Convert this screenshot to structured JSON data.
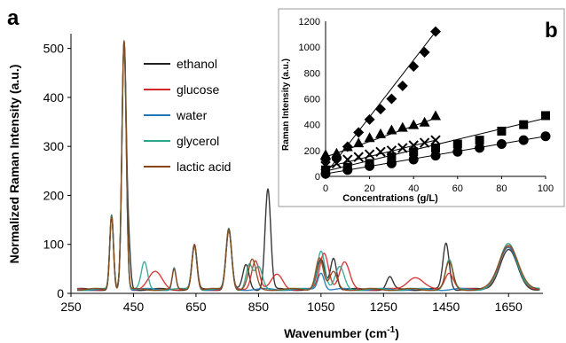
{
  "chart_data": [
    {
      "panel": "a",
      "type": "line",
      "xlabel_main": "Wavenumber (cm",
      "xlabel_sup": "-1",
      "xlabel_close": ")",
      "ylabel": "Normalized Raman Intensity (a.u.)",
      "xlim": [
        250,
        1760
      ],
      "ylim": [
        0,
        530
      ],
      "xticks": [
        250,
        450,
        650,
        850,
        1050,
        1250,
        1450,
        1650
      ],
      "yticks": [
        0,
        100,
        200,
        300,
        400,
        500
      ],
      "legend_position": "top-center",
      "baseline": 8,
      "series": [
        {
          "name": "ethanol",
          "color": "#222222",
          "peaks": [
            [
              380,
              150,
              6
            ],
            [
              420,
              500,
              7
            ],
            [
              435,
              80,
              6
            ],
            [
              645,
              90,
              8
            ],
            [
              755,
              120,
              9
            ],
            [
              810,
              50,
              10
            ],
            [
              880,
              205,
              9
            ],
            [
              1050,
              60,
              12
            ],
            [
              1090,
              65,
              10
            ],
            [
              1270,
              25,
              10
            ],
            [
              1450,
              95,
              10
            ],
            [
              1650,
              80,
              28
            ]
          ]
        },
        {
          "name": "glucose",
          "color": "#d62728",
          "peaks": [
            [
              380,
              150,
              6
            ],
            [
              420,
              500,
              7
            ],
            [
              520,
              35,
              22
            ],
            [
              645,
              90,
              8
            ],
            [
              755,
              120,
              9
            ],
            [
              840,
              60,
              12
            ],
            [
              910,
              30,
              18
            ],
            [
              1060,
              75,
              14
            ],
            [
              1125,
              55,
              16
            ],
            [
              1350,
              25,
              25
            ],
            [
              1460,
              35,
              14
            ],
            [
              1650,
              85,
              30
            ]
          ]
        },
        {
          "name": "water",
          "color": "#1f77b4",
          "peaks": [
            [
              380,
              150,
              6
            ],
            [
              420,
              505,
              7
            ],
            [
              580,
              45,
              6
            ],
            [
              645,
              90,
              8
            ],
            [
              755,
              120,
              9
            ],
            [
              1050,
              35,
              10
            ],
            [
              1650,
              85,
              30
            ]
          ]
        },
        {
          "name": "glycerol",
          "color": "#2ca58d",
          "peaks": [
            [
              380,
              150,
              6
            ],
            [
              420,
              500,
              7
            ],
            [
              485,
              55,
              10
            ],
            [
              645,
              90,
              8
            ],
            [
              755,
              125,
              9
            ],
            [
              820,
              50,
              10
            ],
            [
              850,
              45,
              12
            ],
            [
              1050,
              80,
              12
            ],
            [
              1110,
              45,
              14
            ],
            [
              1460,
              60,
              12
            ],
            [
              1650,
              95,
              28
            ]
          ]
        },
        {
          "name": "lactic acid",
          "color": "#8b4513",
          "peaks": [
            [
              380,
              150,
              6
            ],
            [
              420,
              508,
              7
            ],
            [
              580,
              40,
              6
            ],
            [
              645,
              92,
              8
            ],
            [
              755,
              125,
              9
            ],
            [
              830,
              60,
              12
            ],
            [
              1045,
              65,
              12
            ],
            [
              1090,
              35,
              12
            ],
            [
              1460,
              55,
              12
            ],
            [
              1650,
              92,
              30
            ]
          ]
        }
      ]
    },
    {
      "panel": "b",
      "type": "scatter",
      "xlabel": "Concentrations (g/L)",
      "ylabel": "Raman Intensity (a.u.)",
      "xlim": [
        0,
        100
      ],
      "ylim": [
        0,
        1200
      ],
      "xticks": [
        0,
        20,
        40,
        60,
        80,
        100
      ],
      "yticks": [
        0,
        200,
        400,
        600,
        800,
        1000,
        1200
      ],
      "series": [
        {
          "marker": "diamond",
          "x": [
            0,
            5,
            10,
            15,
            20,
            25,
            30,
            35,
            40,
            45,
            50
          ],
          "y": [
            130,
            140,
            230,
            340,
            440,
            520,
            600,
            700,
            850,
            960,
            1120
          ],
          "fit": [
            [
              0,
              20
            ],
            [
              50,
              1120
            ]
          ]
        },
        {
          "marker": "triangle",
          "x": [
            0,
            5,
            10,
            15,
            20,
            25,
            30,
            35,
            40,
            45,
            50
          ],
          "y": [
            170,
            180,
            230,
            260,
            300,
            330,
            360,
            380,
            400,
            420,
            470
          ],
          "fit": [
            [
              0,
              150
            ],
            [
              50,
              450
            ]
          ]
        },
        {
          "marker": "cross",
          "x": [
            0,
            5,
            10,
            15,
            20,
            25,
            30,
            35,
            40,
            45,
            50
          ],
          "y": [
            80,
            100,
            130,
            150,
            170,
            190,
            200,
            220,
            240,
            260,
            280
          ],
          "fit": [
            [
              0,
              70
            ],
            [
              50,
              280
            ]
          ]
        },
        {
          "marker": "square",
          "x": [
            0,
            10,
            20,
            30,
            40,
            50,
            60,
            70,
            80,
            90,
            100
          ],
          "y": [
            50,
            70,
            100,
            150,
            190,
            220,
            250,
            280,
            350,
            400,
            470
          ],
          "fit": [
            [
              0,
              40
            ],
            [
              100,
              450
            ]
          ]
        },
        {
          "marker": "circle",
          "x": [
            0,
            10,
            20,
            30,
            40,
            50,
            60,
            70,
            80,
            90,
            100
          ],
          "y": [
            20,
            50,
            80,
            100,
            130,
            160,
            190,
            220,
            250,
            280,
            310
          ],
          "fit": [
            [
              0,
              20
            ],
            [
              100,
              310
            ]
          ]
        }
      ]
    }
  ]
}
